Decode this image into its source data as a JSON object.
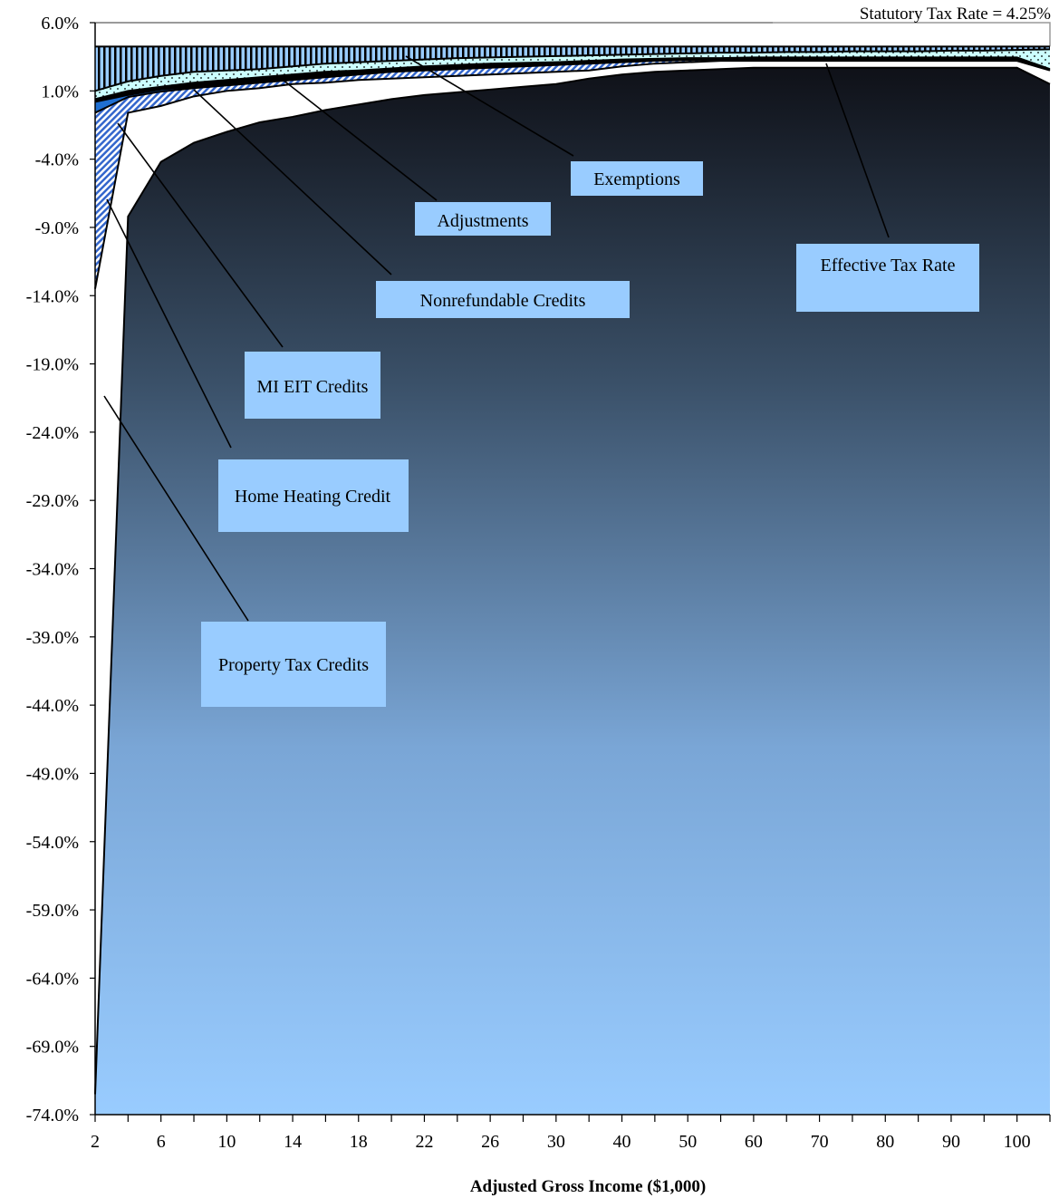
{
  "chart_data": {
    "type": "area",
    "title": "",
    "annotation": "Statutory Tax Rate = 4.25%",
    "xlabel": "Adjusted Gross Income ($1,000)",
    "ylabel": "",
    "ylim": [
      -74,
      6
    ],
    "y_ticks": [
      "6.0%",
      "1.0%",
      "-4.0%",
      "-9.0%",
      "-14.0%",
      "-19.0%",
      "-24.0%",
      "-29.0%",
      "-34.0%",
      "-39.0%",
      "-44.0%",
      "-49.0%",
      "-54.0%",
      "-59.0%",
      "-64.0%",
      "-69.0%",
      "-74.0%"
    ],
    "x_tick_labels": [
      "2",
      "6",
      "10",
      "14",
      "18",
      "22",
      "26",
      "30",
      "40",
      "50",
      "60",
      "70",
      "80",
      "90",
      "100"
    ],
    "x": [
      2,
      4,
      6,
      8,
      10,
      12,
      14,
      16,
      18,
      20,
      22,
      24,
      26,
      28,
      30,
      35,
      40,
      45,
      50,
      55,
      60,
      65,
      70,
      75,
      80,
      85,
      90,
      95,
      100,
      105
    ],
    "series": [
      {
        "name": "Exemptions",
        "pattern": "vertical-stripes",
        "values": [
          4.25,
          4.25,
          4.25,
          4.25,
          4.25,
          4.25,
          4.25,
          4.25,
          4.25,
          4.25,
          4.25,
          4.25,
          4.25,
          4.25,
          4.25,
          4.25,
          4.25,
          4.25,
          4.25,
          4.25,
          4.25,
          4.25,
          4.25,
          4.25,
          4.25,
          4.25,
          4.25,
          4.25,
          4.25,
          4.25
        ]
      },
      {
        "name": "Adjustments",
        "pattern": "dots",
        "values": [
          1.0,
          1.7,
          2.1,
          2.4,
          2.5,
          2.6,
          2.8,
          3.0,
          3.1,
          3.2,
          3.3,
          3.4,
          3.45,
          3.5,
          3.55,
          3.6,
          3.65,
          3.7,
          3.75,
          3.8,
          3.8,
          3.85,
          3.85,
          3.9,
          3.9,
          3.9,
          3.95,
          3.95,
          4.0,
          4.05
        ]
      },
      {
        "name": "Nonrefundable Credits",
        "pattern": "solid-black",
        "values": [
          0.4,
          1.0,
          1.3,
          1.6,
          1.8,
          2.0,
          2.2,
          2.4,
          2.5,
          2.65,
          2.8,
          2.9,
          3.0,
          3.05,
          3.1,
          3.2,
          3.3,
          3.35,
          3.4,
          3.4,
          3.45,
          3.45,
          3.45,
          3.45,
          3.45,
          3.45,
          3.45,
          3.45,
          3.45,
          2.6
        ]
      },
      {
        "name": "MI EIT Credits",
        "pattern": "solid-blue",
        "values": [
          0.2,
          0.7,
          1.1,
          1.3,
          1.5,
          1.7,
          1.9,
          2.1,
          2.3,
          2.5,
          2.6,
          2.7,
          2.8,
          2.9,
          3.0,
          3.1,
          3.2,
          3.25,
          3.3,
          3.35,
          3.35,
          3.35,
          3.35,
          3.35,
          3.35,
          3.35,
          3.35,
          3.35,
          3.35,
          2.5
        ]
      },
      {
        "name": "Home Heating Credit",
        "pattern": "diagonal-hatch",
        "values": [
          -0.6,
          0.55,
          0.95,
          1.2,
          1.4,
          1.6,
          1.8,
          2.0,
          2.2,
          2.4,
          2.5,
          2.6,
          2.7,
          2.8,
          2.9,
          3.0,
          3.1,
          3.2,
          3.25,
          3.3,
          3.3,
          3.3,
          3.3,
          3.3,
          3.3,
          3.3,
          3.3,
          3.3,
          3.3,
          2.5
        ]
      },
      {
        "name": "Property Tax Credits",
        "pattern": "white",
        "values": [
          -13.5,
          -0.6,
          -0.1,
          0.6,
          1.0,
          1.2,
          1.5,
          1.6,
          1.8,
          1.9,
          2.0,
          2.1,
          2.2,
          2.3,
          2.4,
          2.5,
          2.8,
          3.0,
          3.1,
          3.2,
          3.2,
          3.2,
          3.2,
          3.2,
          3.2,
          3.2,
          3.2,
          3.2,
          3.2,
          2.5
        ]
      },
      {
        "name": "Effective Tax Rate",
        "pattern": "gradient",
        "values": [
          -72.5,
          -8.2,
          -4.2,
          -2.8,
          -2.0,
          -1.3,
          -0.9,
          -0.4,
          0.0,
          0.4,
          0.7,
          0.9,
          1.1,
          1.3,
          1.5,
          1.9,
          2.2,
          2.4,
          2.5,
          2.6,
          2.7,
          2.7,
          2.7,
          2.7,
          2.7,
          2.7,
          2.7,
          2.7,
          2.7,
          1.5
        ]
      }
    ],
    "callouts": [
      {
        "label": "Exemptions"
      },
      {
        "label": "Adjustments"
      },
      {
        "label": "Nonrefundable Credits"
      },
      {
        "label": "Effective Tax Rate"
      },
      {
        "label": "MI EIT Credits"
      },
      {
        "label": "Home Heating Credit"
      },
      {
        "label": "Property Tax Credits"
      }
    ],
    "grid": false,
    "legend": "none"
  }
}
